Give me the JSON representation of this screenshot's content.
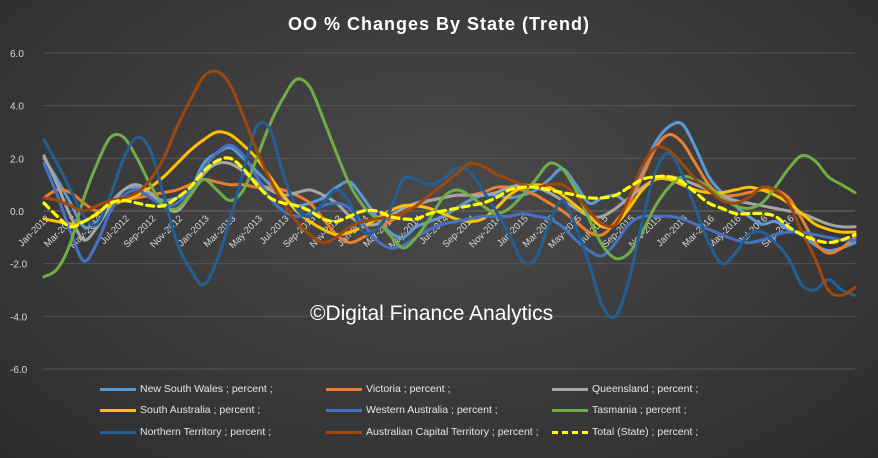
{
  "chart_data": {
    "type": "line",
    "title": "OO % Changes By State (Trend)",
    "watermark": "©Digital Finance Analytics",
    "ylim": [
      -6,
      6
    ],
    "yticks": [
      "6.0",
      "4.0",
      "2.0",
      "0.0",
      "-2.0",
      "-4.0",
      "-6.0"
    ],
    "ytick_values": [
      6,
      4,
      2,
      0,
      -2,
      -4,
      -6
    ],
    "x_tick_labels": [
      "Jan-2012",
      "Mar-2012",
      "May-2012",
      "Jul-2012",
      "Sep-2012",
      "Nov-2012",
      "Jan-2013",
      "Mar-2013",
      "May-2013",
      "Jul-2013",
      "Sep-2013",
      "Nov-2013",
      "Jan-2014",
      "Mar-2014",
      "May-2014",
      "Jul-2014",
      "Sep-2014",
      "Nov-2014",
      "Jan-2015",
      "Mar-2015",
      "May-2015",
      "Jul-2015",
      "Sep-2015",
      "Nov-2015",
      "Jan-2016",
      "Mar-2016",
      "May-2016",
      "Jul-2016",
      "Sep-2016"
    ],
    "grid": true,
    "legend_position": "bottom",
    "series": [
      {
        "name": "New South Wales ;  percent ;",
        "color": "#5b9bd5",
        "dashed": false,
        "values": [
          2.0,
          1.2,
          0.3,
          -0.6,
          -0.4,
          0.3,
          0.8,
          0.9,
          0.6,
          0.4,
          0.5,
          0.8,
          1.8,
          2.2,
          2.4,
          2.0,
          1.5,
          1.0,
          0.5,
          0.2,
          0.3,
          0.5,
          0.9,
          1.1,
          0.5,
          -0.2,
          -0.8,
          -1.0,
          -0.6,
          -0.4,
          -0.2,
          0.1,
          0.4,
          0.6,
          0.6,
          0.5,
          0.6,
          0.8,
          1.2,
          1.6,
          1.0,
          0.3,
          0.5,
          0.6,
          0.4,
          1.5,
          2.6,
          3.2,
          3.3,
          2.4,
          1.3,
          0.7,
          0.2,
          -0.2,
          -0.5,
          -0.4,
          -0.7,
          -0.9,
          -1.3,
          -1.5,
          -1.4,
          -1.2
        ]
      },
      {
        "name": "Victoria ;  percent ;",
        "color": "#ed7d31",
        "dashed": false,
        "values": [
          0.5,
          0.8,
          0.7,
          0.3,
          0.0,
          0.2,
          0.4,
          0.5,
          0.6,
          0.7,
          0.8,
          1.0,
          1.2,
          1.1,
          1.0,
          1.0,
          0.9,
          0.9,
          0.8,
          0.6,
          0.3,
          -0.3,
          -0.9,
          -1.2,
          -1.0,
          -0.7,
          -0.4,
          -0.1,
          0.2,
          0.4,
          0.5,
          0.6,
          0.6,
          0.7,
          0.9,
          0.9,
          0.8,
          0.6,
          0.3,
          0.0,
          -0.4,
          -0.8,
          -0.9,
          -0.4,
          0.3,
          1.3,
          2.4,
          2.9,
          2.6,
          1.8,
          1.0,
          0.6,
          0.6,
          0.7,
          0.8,
          0.8,
          0.5,
          -0.3,
          -1.2,
          -1.6,
          -1.4,
          -1.0
        ]
      },
      {
        "name": "Queensland ;  percent ;",
        "color": "#a5a5a5",
        "dashed": false,
        "values": [
          2.1,
          1.0,
          -0.2,
          -1.1,
          -0.6,
          0.2,
          0.8,
          1.0,
          0.7,
          0.2,
          0.0,
          0.6,
          1.4,
          1.8,
          1.8,
          1.5,
          1.1,
          0.8,
          0.6,
          0.7,
          0.8,
          0.6,
          0.3,
          -0.2,
          -0.5,
          -0.5,
          -0.2,
          0.1,
          0.3,
          0.4,
          0.5,
          0.6,
          0.6,
          0.6,
          0.7,
          0.9,
          1.0,
          0.9,
          0.7,
          0.4,
          0.1,
          -0.2,
          -0.2,
          0.1,
          0.5,
          0.9,
          1.2,
          1.3,
          1.2,
          1.0,
          0.8,
          0.6,
          0.4,
          0.3,
          0.2,
          0.1,
          0.0,
          -0.1,
          -0.3,
          -0.5,
          -0.6,
          -0.6
        ]
      },
      {
        "name": "South Australia ;  percent ;",
        "color": "#ffc000",
        "dashed": false,
        "values": [
          -0.3,
          -0.4,
          -0.5,
          -0.4,
          -0.1,
          0.2,
          0.4,
          0.6,
          0.9,
          1.3,
          1.8,
          2.3,
          2.7,
          3.0,
          2.9,
          2.5,
          2.0,
          1.3,
          0.6,
          0.0,
          -0.4,
          -0.7,
          -0.9,
          -0.8,
          -0.6,
          -0.3,
          0.0,
          0.2,
          0.2,
          0.1,
          -0.1,
          -0.3,
          -0.4,
          -0.3,
          0.1,
          0.6,
          0.9,
          1.0,
          0.9,
          0.6,
          0.2,
          -0.2,
          -0.6,
          -0.5,
          0.1,
          0.8,
          1.2,
          1.2,
          1.0,
          0.8,
          0.7,
          0.7,
          0.8,
          0.9,
          0.8,
          0.6,
          0.3,
          -0.1,
          -0.5,
          -0.7,
          -0.8,
          -0.8
        ]
      },
      {
        "name": "Western Australia ;  percent ;",
        "color": "#4472c4",
        "dashed": false,
        "values": [
          1.8,
          0.6,
          -0.8,
          -1.9,
          -1.2,
          0.0,
          0.6,
          0.8,
          0.5,
          0.2,
          0.3,
          0.8,
          1.6,
          2.2,
          2.5,
          2.1,
          1.3,
          0.5,
          0.0,
          -0.2,
          -0.1,
          0.2,
          0.3,
          0.1,
          -0.5,
          -1.1,
          -1.4,
          -1.3,
          -1.0,
          -0.7,
          -0.5,
          -0.4,
          -0.3,
          -0.2,
          -0.2,
          -0.2,
          -0.1,
          -0.2,
          -0.3,
          -0.6,
          -1.1,
          -1.5,
          -1.7,
          -1.2,
          -0.5,
          -0.2,
          -0.2,
          -0.2,
          -0.3,
          -0.5,
          -0.7,
          -0.9,
          -1.1,
          -1.2,
          -1.1,
          -0.9,
          -0.8,
          -0.8,
          -0.9,
          -1.0,
          -1.1,
          -1.1
        ]
      },
      {
        "name": "Tasmania ;  percent ;",
        "color": "#70ad47",
        "dashed": false,
        "values": [
          -2.5,
          -2.2,
          -1.2,
          0.5,
          1.8,
          2.8,
          2.8,
          2.0,
          1.0,
          0.2,
          0.1,
          0.6,
          1.2,
          0.8,
          0.4,
          0.8,
          2.0,
          3.3,
          4.3,
          5.0,
          4.7,
          3.5,
          2.2,
          1.0,
          0.2,
          -0.3,
          -0.9,
          -1.4,
          -1.0,
          -0.3,
          0.5,
          0.8,
          0.6,
          0.2,
          -0.1,
          0.1,
          0.6,
          1.2,
          1.8,
          1.6,
          0.8,
          -0.3,
          -1.3,
          -1.8,
          -1.6,
          -0.8,
          0.2,
          0.9,
          1.3,
          1.2,
          0.9,
          0.5,
          0.2,
          0.1,
          0.3,
          0.9,
          1.6,
          2.1,
          1.9,
          1.3,
          1.0,
          0.7
        ]
      },
      {
        "name": "Northern Territory ;  percent ;",
        "color": "#255e91",
        "dashed": false,
        "values": [
          2.7,
          1.8,
          0.8,
          -0.2,
          -0.5,
          0.6,
          2.0,
          2.8,
          2.3,
          0.6,
          -1.2,
          -2.2,
          -2.8,
          -1.9,
          -0.3,
          1.5,
          3.2,
          3.1,
          1.4,
          0.1,
          -0.2,
          0.3,
          0.8,
          0.3,
          -0.8,
          -0.7,
          0.0,
          1.2,
          1.2,
          1.0,
          1.2,
          1.6,
          1.5,
          0.8,
          0.0,
          -0.9,
          -1.9,
          -1.8,
          -0.5,
          0.4,
          -0.6,
          -2.0,
          -3.6,
          -4.0,
          -2.6,
          -0.4,
          1.5,
          2.2,
          1.4,
          0.1,
          -1.2,
          -2.0,
          -1.6,
          -0.9,
          -0.8,
          -1.2,
          -1.8,
          -2.8,
          -3.0,
          -2.6,
          -3.0,
          -3.2
        ]
      },
      {
        "name": "Australian Capital Territory ;  percent ;",
        "color": "#9e480e",
        "dashed": false,
        "values": [
          0.5,
          0.4,
          0.2,
          0.0,
          0.2,
          0.4,
          0.5,
          0.7,
          1.2,
          2.0,
          3.2,
          4.2,
          5.1,
          5.3,
          4.8,
          3.6,
          2.3,
          1.2,
          0.3,
          -0.4,
          -0.9,
          -1.2,
          -1.0,
          -0.6,
          -0.4,
          -0.3,
          -0.2,
          -0.1,
          0.2,
          0.6,
          1.0,
          1.4,
          1.8,
          1.7,
          1.4,
          1.2,
          1.0,
          0.9,
          1.0,
          1.0,
          0.6,
          0.0,
          -0.5,
          -0.5,
          0.5,
          1.7,
          2.4,
          2.3,
          1.8,
          1.2,
          0.8,
          0.4,
          0.3,
          0.5,
          0.9,
          0.8,
          0.3,
          -0.8,
          -1.8,
          -3.0,
          -3.2,
          -2.9
        ]
      },
      {
        "name": "Total (State) ;  percent ;",
        "color": "#ffff00",
        "dashed": true,
        "values": [
          0.3,
          -0.2,
          -0.6,
          -0.4,
          -0.1,
          0.3,
          0.4,
          0.3,
          0.2,
          0.2,
          0.5,
          0.9,
          1.5,
          1.9,
          2.0,
          1.6,
          1.0,
          0.5,
          0.3,
          0.2,
          0.0,
          -0.3,
          -0.4,
          -0.2,
          0.0,
          0.0,
          -0.2,
          -0.3,
          -0.3,
          -0.1,
          0.0,
          0.1,
          0.2,
          0.3,
          0.5,
          0.8,
          0.9,
          0.9,
          0.8,
          0.7,
          0.6,
          0.5,
          0.5,
          0.6,
          0.9,
          1.2,
          1.3,
          1.3,
          1.1,
          0.7,
          0.3,
          0.1,
          -0.1,
          -0.1,
          -0.1,
          -0.2,
          -0.6,
          -0.9,
          -1.1,
          -1.2,
          -1.1,
          -0.9
        ]
      }
    ]
  }
}
